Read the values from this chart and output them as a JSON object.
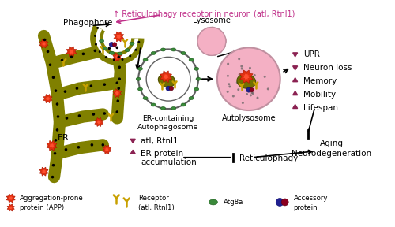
{
  "title_text": "↑ Reticulophagy receptor in neuron (atl, Rtnl1)",
  "title_color": "#c0308a",
  "title_fontsize": 7.0,
  "er_color": "#808000",
  "phagophore_label": "Phagophore",
  "autophagosome_label": "ER-containing\nAutophagosome",
  "autolysosome_label": "Autolysosome",
  "lysosome_label": "Lysosome",
  "lysosome_color": "#f4b0c4",
  "autolysosome_color": "#f4b0c4",
  "down_items": [
    "UPR",
    "Neuron loss"
  ],
  "up_items": [
    "Memory",
    "Mobility",
    "Lifespan"
  ],
  "marker_color": "#8b2252",
  "inhibit_text1": "atl, Rtnl1",
  "inhibit_text2": "ER protein",
  "inhibit_text3": "accumulation",
  "reticulophagy_label": "Reticulophagy",
  "aging_label1": "Aging",
  "aging_label2": "Neurodegeneration",
  "er_label": "ER",
  "agg_color": "#e03010",
  "agg_color2": "#ff5030",
  "rec_color": "#c8a000",
  "atg_color": "#3a8a3a",
  "acc_color1": "#202090",
  "acc_color2": "#8b0020"
}
